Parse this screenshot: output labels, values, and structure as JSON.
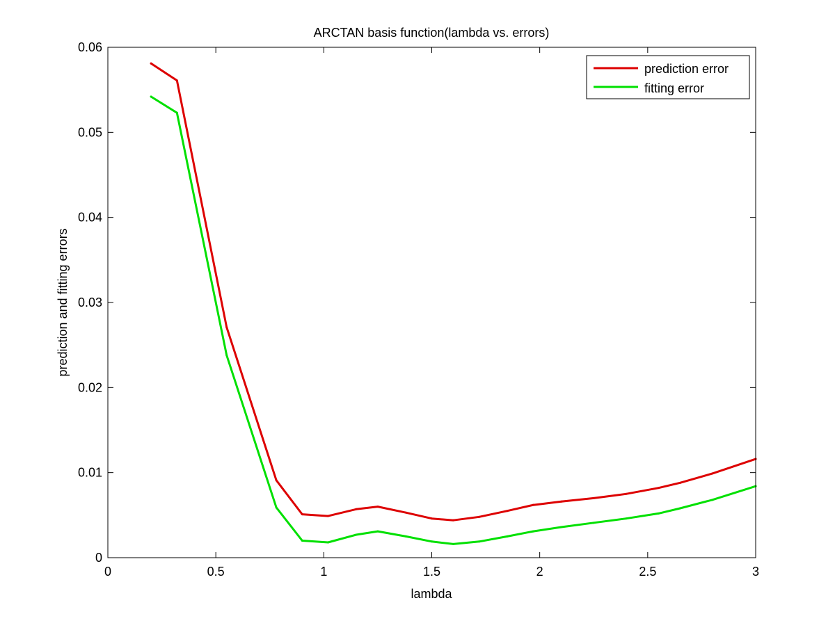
{
  "chart_data": {
    "type": "line",
    "title": "ARCTAN basis function(lambda vs. errors)",
    "xlabel": "lambda",
    "ylabel": "prediction and fitting errors",
    "xlim": [
      0,
      3
    ],
    "ylim": [
      0,
      0.06
    ],
    "xticks": [
      0,
      0.5,
      1,
      1.5,
      2,
      2.5,
      3
    ],
    "xtick_labels": [
      "0",
      "0.5",
      "1",
      "1.5",
      "2",
      "2.5",
      "3"
    ],
    "yticks": [
      0,
      0.01,
      0.02,
      0.03,
      0.04,
      0.05,
      0.06
    ],
    "ytick_labels": [
      "0",
      "0.01",
      "0.02",
      "0.03",
      "0.04",
      "0.05",
      "0.06"
    ],
    "grid": false,
    "legend_position": "top-right",
    "series": [
      {
        "name": "prediction error",
        "color": "#dd0000",
        "x": [
          0.2,
          0.32,
          0.55,
          0.78,
          0.9,
          1.02,
          1.15,
          1.25,
          1.38,
          1.5,
          1.6,
          1.72,
          1.85,
          1.97,
          2.1,
          2.25,
          2.4,
          2.55,
          2.65,
          2.8,
          3.0
        ],
        "y": [
          0.0581,
          0.0561,
          0.0271,
          0.0091,
          0.0051,
          0.0049,
          0.0057,
          0.006,
          0.0053,
          0.0046,
          0.0044,
          0.0048,
          0.0055,
          0.0062,
          0.0066,
          0.007,
          0.0075,
          0.0082,
          0.0088,
          0.0099,
          0.0116
        ]
      },
      {
        "name": "fitting error",
        "color": "#00e000",
        "x": [
          0.2,
          0.32,
          0.55,
          0.78,
          0.9,
          1.02,
          1.15,
          1.25,
          1.38,
          1.5,
          1.6,
          1.72,
          1.85,
          1.97,
          2.1,
          2.25,
          2.4,
          2.55,
          2.65,
          2.8,
          3.0
        ],
        "y": [
          0.0542,
          0.0523,
          0.0238,
          0.0059,
          0.002,
          0.0018,
          0.0027,
          0.0031,
          0.0025,
          0.0019,
          0.0016,
          0.0019,
          0.0025,
          0.0031,
          0.0036,
          0.0041,
          0.0046,
          0.0052,
          0.0058,
          0.0068,
          0.0084
        ]
      }
    ]
  }
}
